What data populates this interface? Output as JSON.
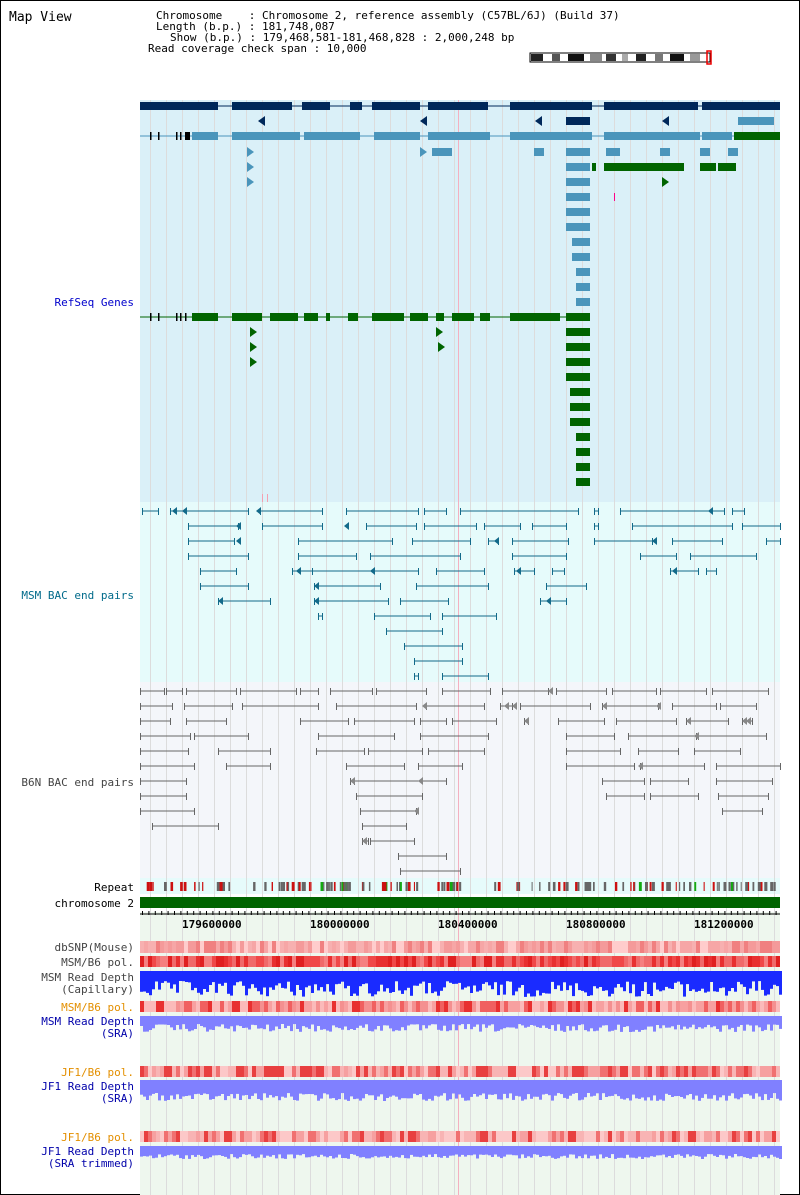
{
  "title": "Map View",
  "info": {
    "chromosome": "Chromosome    : Chromosome 2, reference assembly (C57BL/6J) (Build 37)",
    "length": "Length (b.p.) : 181,748,087",
    "show": "Show (b.p.) : 179,468,581-181,468,828 : 2,000,248 bp",
    "coverage": "Read coverage check span : 10,000"
  },
  "tracks": {
    "refseq": "RefSeq Genes",
    "msm_bac": "MSM BAC end pairs",
    "b6n_bac": "B6N BAC end pairs",
    "repeat": "Repeat",
    "chromosome": "chromosome 2",
    "dbsnp": "dbSNP(Mouse)",
    "msm_b6_pol_1": "MSM/B6 pol.",
    "msm_depth_cap_1": "MSM Read Depth",
    "msm_depth_cap_2": "(Capillary)",
    "msm_b6_pol_2": "MSM/B6 pol.",
    "msm_depth_sra_1": "MSM Read Depth",
    "msm_depth_sra_2": "(SRA)",
    "jf1_b6_pol_1": "JF1/B6 pol.",
    "jf1_depth_sra_1": "JF1 Read Depth",
    "jf1_depth_sra_2": "(SRA)",
    "jf1_b6_pol_2": "JF1/B6 pol.",
    "jf1_depth_trim_1": "JF1 Read Depth",
    "jf1_depth_trim_2": "(SRA trimmed)"
  },
  "axis": {
    "ticks": [
      "179600000",
      "180000000",
      "180400000",
      "180800000",
      "181200000"
    ]
  },
  "colors": {
    "refseq_bg": "#daf0f8",
    "msm_bg": "#e6fbfb",
    "b6n_bg": "#f4f6fa",
    "refseq_dark": "#00285a",
    "refseq_mid": "#4a95bb",
    "refseq_green": "#006400",
    "msm_bac": "#136a8a",
    "b6n_bac": "#666666",
    "chromosome_bar": "#006400",
    "label_blue": "#0000cc",
    "label_cyan": "#006a8a",
    "label_orange": "#e38f00",
    "depth_blue": "#1a2bff",
    "depth_light": "#8080ff"
  }
}
